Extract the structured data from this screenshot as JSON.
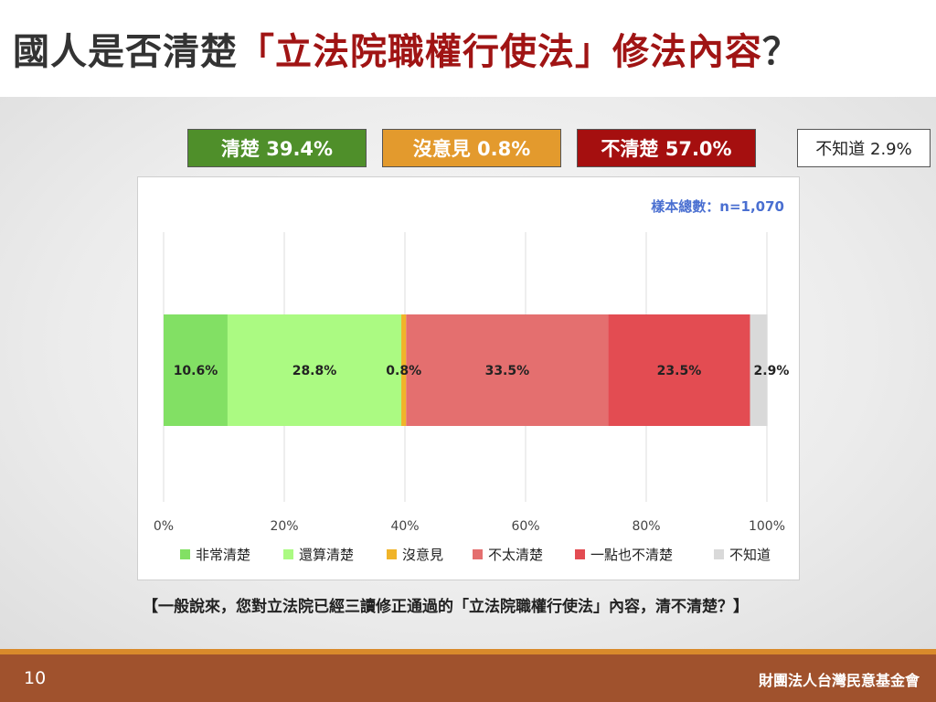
{
  "slide": {
    "title_prefix": "國人是否清楚",
    "title_highlight": "「立法院職權行使法」修法內容",
    "title_suffix": "？",
    "question": "【一般說來，您對立法院已經三讀修正通過的「立法院職權行使法」內容，清不清楚？】",
    "page_number": "10",
    "organization": "財團法人台灣民意基金會"
  },
  "summary": [
    {
      "label": "清楚 39.4%",
      "bg": "#4f8f2a",
      "fg": "#ffffff"
    },
    {
      "label": "沒意見 0.8%",
      "bg": "#e39a2d",
      "fg": "#ffffff"
    },
    {
      "label": "不清楚 57.0%",
      "bg": "#a50f0f",
      "fg": "#ffffff"
    },
    {
      "label": "不知道 2.9%",
      "bg": "#ffffff",
      "fg": "#222222"
    }
  ],
  "chart_data": {
    "type": "bar",
    "orientation": "horizontal-stacked-100",
    "sample_note": "樣本總數：n=1,070",
    "xlim": [
      0,
      100
    ],
    "x_ticks": [
      "0%",
      "20%",
      "40%",
      "60%",
      "80%",
      "100%"
    ],
    "grid": true,
    "legend_position": "bottom",
    "series": [
      {
        "name": "非常清楚",
        "value": 10.6,
        "label": "10.6%",
        "color": "#82e064"
      },
      {
        "name": "還算清楚",
        "value": 28.8,
        "label": "28.8%",
        "color": "#abfa82"
      },
      {
        "name": "沒意見",
        "value": 0.8,
        "label": "0.8%",
        "color": "#f0b429"
      },
      {
        "name": "不太清楚",
        "value": 33.5,
        "label": "33.5%",
        "color": "#e46f6f"
      },
      {
        "name": "一點也不清楚",
        "value": 23.5,
        "label": "23.5%",
        "color": "#e34c52"
      },
      {
        "name": "不知道",
        "value": 2.9,
        "label": "2.9%",
        "color": "#d9d9d9"
      }
    ]
  }
}
